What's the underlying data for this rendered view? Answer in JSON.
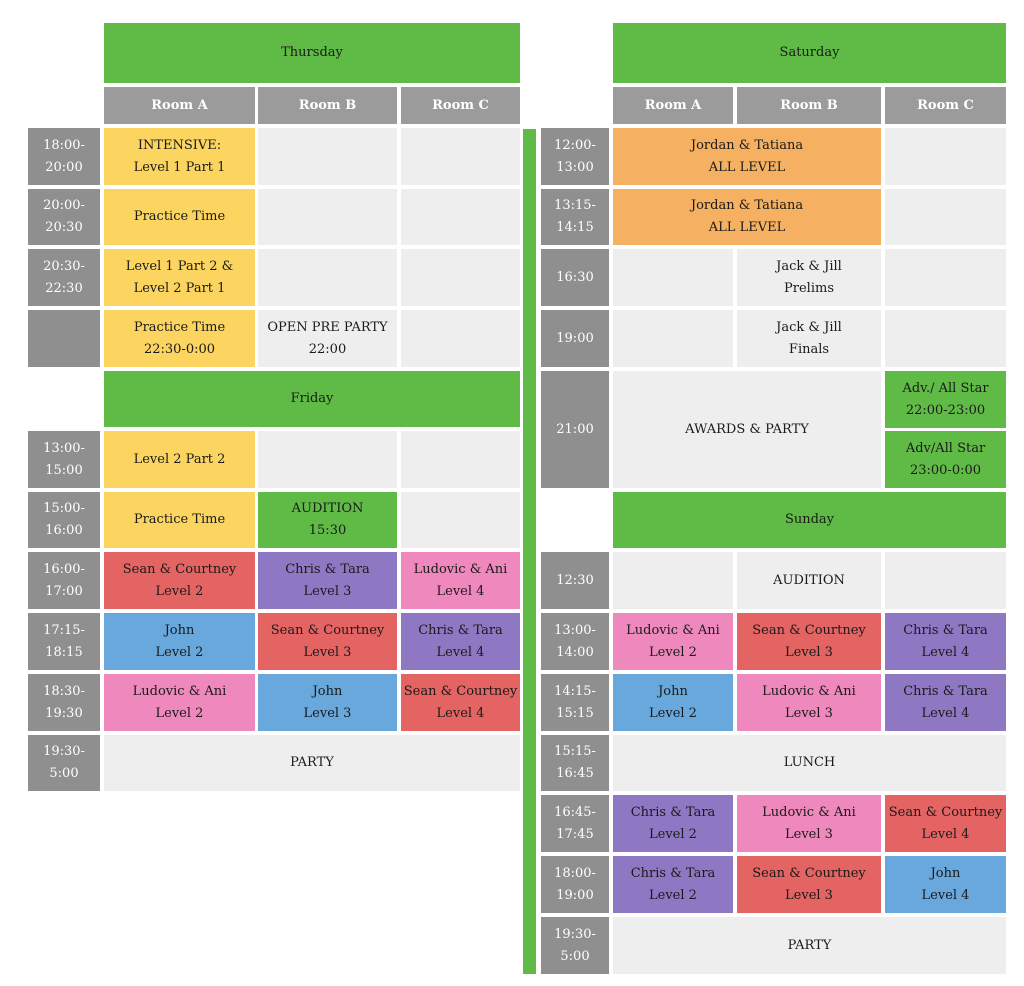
{
  "days": {
    "thursday": "Thursday",
    "friday": "Friday",
    "saturday": "Saturday",
    "sunday": "Sunday"
  },
  "rooms": {
    "a": "Room A",
    "b": "Room B",
    "c": "Room C"
  },
  "thursday": {
    "times": [
      "18:00-\n20:00",
      "20:00-\n20:30",
      "20:30-\n22:30",
      ""
    ],
    "cells": {
      "r1a": "INTENSIVE:\nLevel 1 Part 1",
      "r2a": "Practice Time",
      "r3a": "Level 1 Part 2 &\nLevel 2 Part 1",
      "r4a": "Practice Time\n22:30-0:00",
      "r4b": "OPEN PRE PARTY\n22:00"
    }
  },
  "friday": {
    "times": [
      "13:00-\n15:00",
      "15:00-\n16:00",
      "16:00-\n17:00",
      "17:15-\n18:15",
      "18:30-\n19:30",
      "19:30-\n5:00"
    ],
    "cells": {
      "r1a": "Level 2 Part 2",
      "r2a": "Practice Time",
      "r2b": "AUDITION\n15:30",
      "r3a": "Sean & Courtney\nLevel 2",
      "r3b": "Chris & Tara\nLevel 3",
      "r3c": "Ludovic & Ani\nLevel 4",
      "r4a": "John\nLevel 2",
      "r4b": "Sean & Courtney\nLevel 3",
      "r4c": "Chris & Tara\nLevel 4",
      "r5a": "Ludovic & Ani\nLevel 2",
      "r5b": "John\nLevel 3",
      "r5c": "Sean & Courtney\nLevel 4",
      "r6": "PARTY"
    }
  },
  "saturday": {
    "times": [
      "12:00-\n13:00",
      "13:15-\n14:15",
      "16:30",
      "19:00",
      "21:00"
    ],
    "cells": {
      "r1ab": "Jordan & Tatiana\nALL LEVEL",
      "r2ab": "Jordan & Tatiana\nALL LEVEL",
      "r3b": "Jack & Jill\nPrelims",
      "r4b": "Jack & Jill\nFinals",
      "r5ab": "AWARDS & PARTY",
      "r5c1": "Adv./ All Star\n22:00-23:00",
      "r5c2": "Adv/All Star\n23:00-0:00"
    }
  },
  "sunday": {
    "times": [
      "12:30",
      "13:00-\n14:00",
      "14:15-\n15:15",
      "15:15-\n16:45",
      "16:45-\n17:45",
      "18:00-\n19:00",
      "19:30-\n5:00"
    ],
    "cells": {
      "r1b": "AUDITION",
      "r2a": "Ludovic & Ani\nLevel 2",
      "r2b": "Sean & Courtney\nLevel 3",
      "r2c": "Chris & Tara\nLevel 4",
      "r3a": "John\nLevel 2",
      "r3b": "Ludovic & Ani\nLevel 3",
      "r3c": "Chris & Tara\nLevel 4",
      "r4": "LUNCH",
      "r5a": "Chris & Tara\nLevel 2",
      "r5b": "Ludovic & Ani\nLevel 3",
      "r5c": "Sean & Courtney\nLevel 4",
      "r6a": "Chris & Tara\nLevel 2",
      "r6b": "Sean & Courtney\nLevel 3",
      "r6c": "John\nLevel 4",
      "r7": "PARTY"
    }
  },
  "colors": {
    "green": "#5fbb46",
    "yellow": "#fcd460",
    "orange": "#f6b061",
    "red": "#e36462",
    "purple": "#8e78c4",
    "pink": "#ef89bd",
    "blue": "#68a8dd",
    "gray": "#eeeeee",
    "time": "#8f8f8f"
  }
}
